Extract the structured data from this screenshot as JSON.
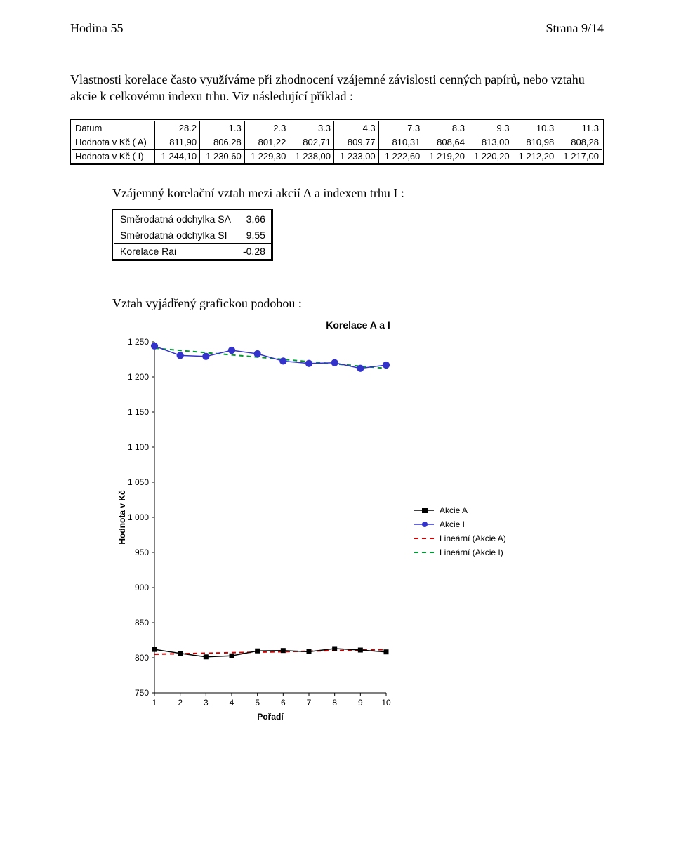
{
  "header": {
    "left": "Hodina 55",
    "right": "Strana 9/14"
  },
  "intro": "Vlastnosti korelace často využíváme při zhodnocení vzájemné závislosti cenných papírů, nebo vztahu akcie k celkovému indexu trhu. Viz následující příklad :",
  "table1": {
    "rows": [
      {
        "label": "Datum",
        "cells": [
          "28.2",
          "1.3",
          "2.3",
          "3.3",
          "4.3",
          "7.3",
          "8.3",
          "9.3",
          "10.3",
          "11.3"
        ]
      },
      {
        "label": "Hodnota v Kč ( A)",
        "cells": [
          "811,90",
          "806,28",
          "801,22",
          "802,71",
          "809,77",
          "810,31",
          "808,64",
          "813,00",
          "810,98",
          "808,28"
        ]
      },
      {
        "label": "Hodnota v Kč ( I)",
        "cells": [
          "1 244,10",
          "1 230,60",
          "1 229,30",
          "1 238,00",
          "1 233,00",
          "1 222,60",
          "1 219,20",
          "1 220,20",
          "1 212,20",
          "1 217,00"
        ]
      }
    ]
  },
  "subhead1": "Vzájemný korelační vztah mezi akcií A a indexem trhu I :",
  "table2": {
    "rows": [
      {
        "label": "Směrodatná odchylka SA",
        "value": "3,66"
      },
      {
        "label": "Směrodatná odchylka SI",
        "value": "9,55"
      },
      {
        "label": "Korelace Rai",
        "value": "-0,28"
      }
    ]
  },
  "subhead2": "Vztah vyjádřený grafickou podobou :",
  "chart": {
    "title": "Korelace A a I",
    "type": "line",
    "x_values": [
      1,
      2,
      3,
      4,
      5,
      6,
      7,
      8,
      9,
      10
    ],
    "series_A": [
      811.9,
      806.28,
      801.22,
      802.71,
      809.77,
      810.31,
      808.64,
      813.0,
      810.98,
      808.28
    ],
    "series_I": [
      1244.1,
      1230.6,
      1229.3,
      1238.0,
      1233.0,
      1222.6,
      1219.2,
      1220.2,
      1212.2,
      1217.0
    ],
    "trend_A": {
      "y_start": 805.0,
      "y_end": 811.6
    },
    "trend_I": {
      "y_start": 1241.0,
      "y_end": 1212.2
    },
    "ylim": [
      750,
      1250
    ],
    "ytick_step": 50,
    "xlim": [
      1,
      10
    ],
    "xtick_step": 1,
    "colors": {
      "series_A": "#000000",
      "series_I": "#3333cc",
      "trend_A": "#cc0000",
      "trend_I": "#009933",
      "marker_A_fill": "#000000",
      "marker_I_fill": "#3333cc",
      "axis": "#000000",
      "grid": "#000000",
      "background": "#ffffff"
    },
    "marker_A": "square",
    "marker_I": "circle",
    "marker_size": 6,
    "line_width": 1.5,
    "dash": "6,5",
    "x_label": "Pořadí",
    "y_label": "Hodnota v Kč",
    "legend": [
      "Akcie A",
      "Akcie I",
      "Lineární (Akcie A)",
      "Lineární (Akcie I)"
    ],
    "label_fontsize": 12,
    "tick_fontsize": 12,
    "title_fontsize": 14
  }
}
